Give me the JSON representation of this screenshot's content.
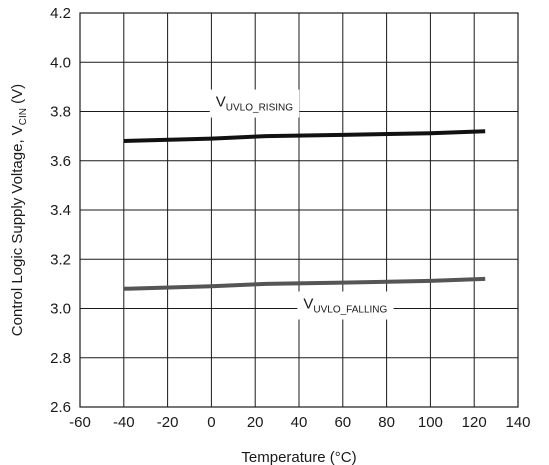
{
  "chart_data": {
    "type": "line",
    "title": "",
    "xlabel": "Temperature (°C)",
    "ylabel": {
      "main": "Control Logic Supply Voltage, V",
      "sub": "CIN",
      "suffix": " (V)"
    },
    "xlim": [
      -60,
      140
    ],
    "ylim": [
      2.6,
      4.2
    ],
    "xticks": [
      "-60",
      "-40",
      "-20",
      "0",
      "20",
      "40",
      "60",
      "80",
      "100",
      "120",
      "140"
    ],
    "yticks": [
      "2.6",
      "2.8",
      "3.0",
      "3.2",
      "3.4",
      "3.6",
      "3.8",
      "4.0",
      "4.2"
    ],
    "grid": true,
    "series": [
      {
        "name": {
          "main": "V",
          "sub": "UVLO_RISING"
        },
        "color": "#111111",
        "x": [
          -40,
          0,
          25,
          60,
          100,
          125
        ],
        "y": [
          3.68,
          3.69,
          3.7,
          3.705,
          3.712,
          3.72
        ]
      },
      {
        "name": {
          "main": "V",
          "sub": "UVLO_FALLING"
        },
        "color": "#555555",
        "x": [
          -40,
          0,
          25,
          60,
          100,
          125
        ],
        "y": [
          3.08,
          3.09,
          3.1,
          3.105,
          3.112,
          3.12
        ]
      }
    ]
  }
}
